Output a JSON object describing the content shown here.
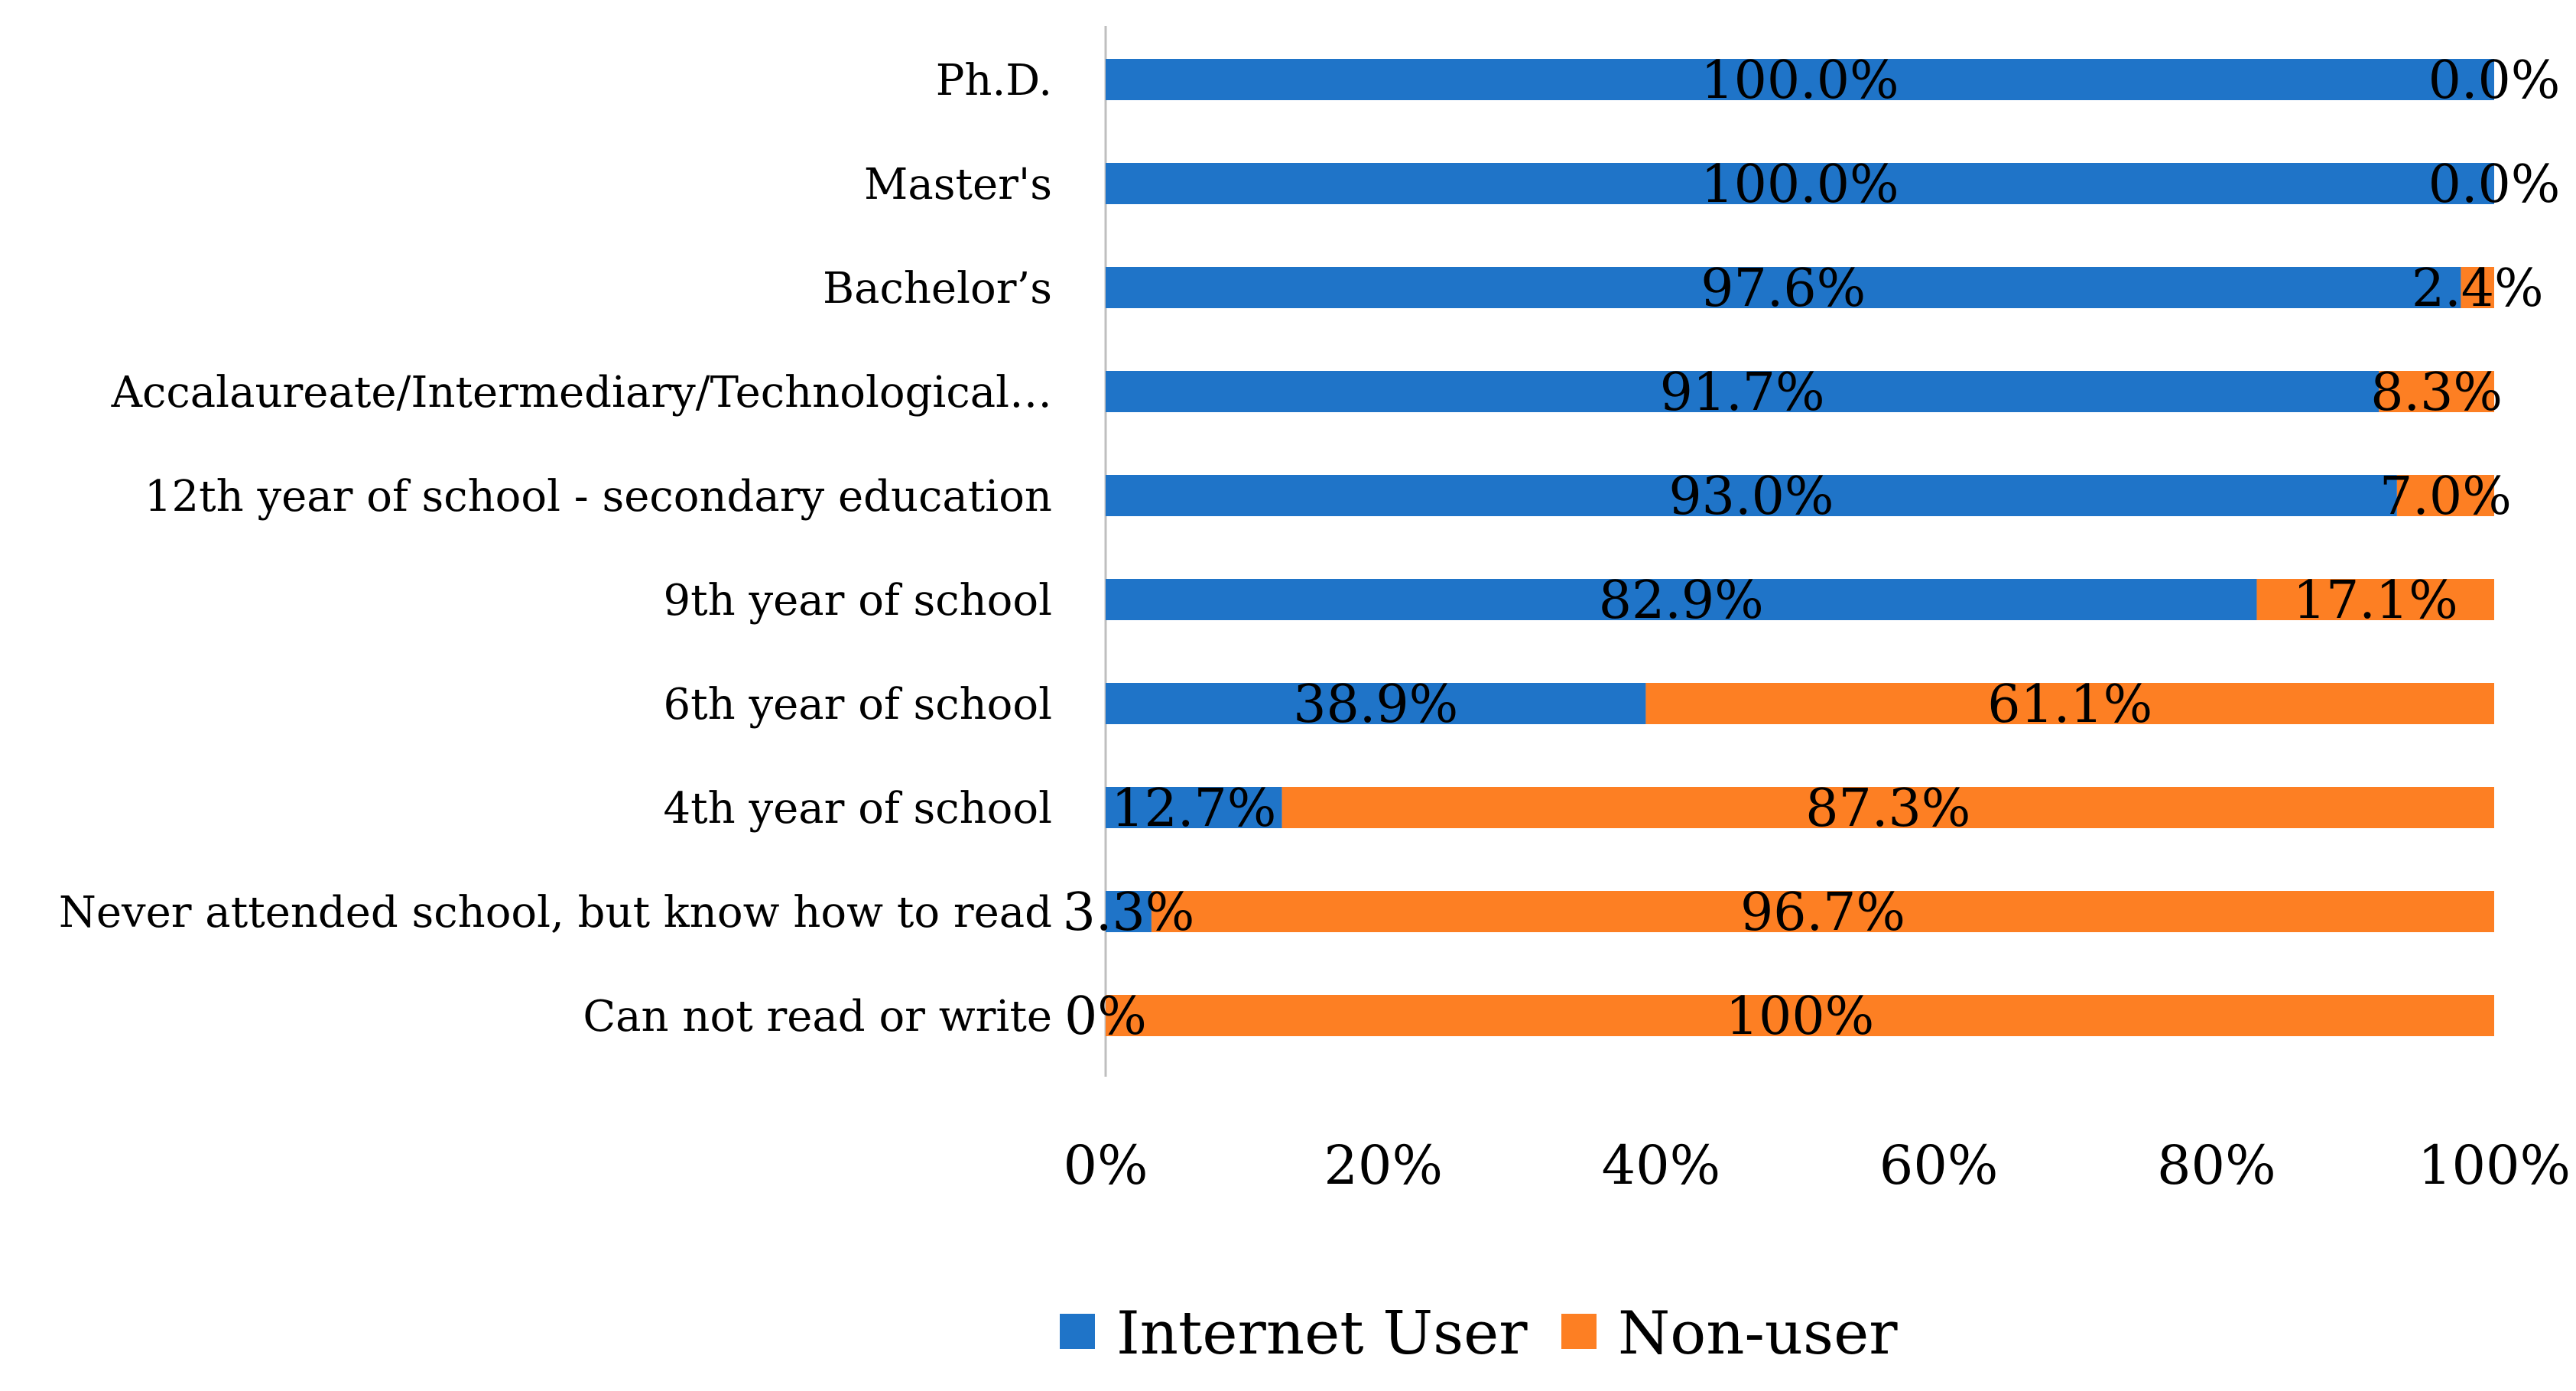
{
  "chart_data": {
    "type": "bar",
    "orientation": "horizontal",
    "stacked": "percent",
    "title": "",
    "xlabel": "",
    "ylabel": "",
    "xlim": [
      0,
      100
    ],
    "categories": [
      "Ph.D.",
      "Master's",
      "Bachelor’s",
      "Accalaureate/Intermediary/Technological…",
      "12th year of school - secondary education",
      "9th year of school",
      "6th year of school",
      "4th year of school",
      "Never attended school, but know how to read",
      "Can not read or write"
    ],
    "series": [
      {
        "name": "Internet User",
        "color": "#1f74c8",
        "values": [
          100.0,
          100.0,
          97.6,
          91.7,
          93.0,
          82.9,
          38.9,
          12.7,
          3.3,
          0
        ],
        "labels": [
          "100.0%",
          "100.0%",
          "97.6%",
          "91.7%",
          "93.0%",
          "82.9%",
          "38.9%",
          "12.7%",
          "3.3%",
          "0%"
        ]
      },
      {
        "name": "Non-user",
        "color": "#fd7f23",
        "values": [
          0.0,
          0.0,
          2.4,
          8.3,
          7.0,
          17.1,
          61.1,
          87.3,
          96.7,
          100
        ],
        "labels": [
          "0.0%",
          "0.0%",
          "2.4%",
          "8.3%",
          "7.0%",
          "17.1%",
          "61.1%",
          "87.3%",
          "96.7%",
          "100%"
        ]
      }
    ],
    "x_ticks": [
      0,
      20,
      40,
      60,
      80,
      100
    ],
    "x_tick_labels": [
      "0%",
      "20%",
      "40%",
      "60%",
      "80%",
      "100%"
    ],
    "grid": false,
    "legend_position": "bottom"
  }
}
